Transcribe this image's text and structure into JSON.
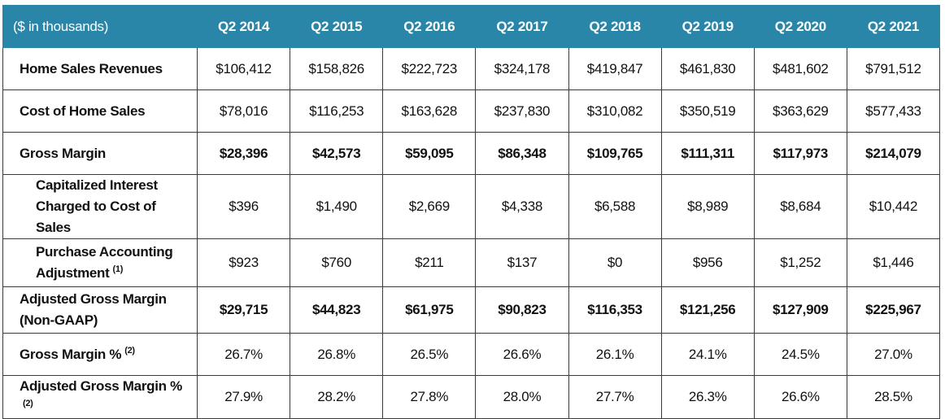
{
  "table": {
    "header_label": "($ in thousands)",
    "columns": [
      "Q2 2014",
      "Q2 2015",
      "Q2 2016",
      "Q2 2017",
      "Q2 2018",
      "Q2 2019",
      "Q2 2020",
      "Q2 2021"
    ],
    "rows": [
      {
        "label": "Home Sales Revenues",
        "values": [
          "$106,412",
          "$158,826",
          "$222,723",
          "$324,178",
          "$419,847",
          "$461,830",
          "$481,602",
          "$791,512"
        ]
      },
      {
        "label": "Cost of Home Sales",
        "values": [
          "$78,016",
          "$116,253",
          "$163,628",
          "$237,830",
          "$310,082",
          "$350,519",
          "$363,629",
          "$577,433"
        ]
      },
      {
        "label": "Gross Margin",
        "values": [
          "$28,396",
          "$42,573",
          "$59,095",
          "$86,348",
          "$109,765",
          "$111,311",
          "$117,973",
          "$214,079"
        ]
      },
      {
        "label_line1": "Capitalized Interest",
        "label_line2": "Charged to Cost of Sales",
        "values": [
          "$396",
          "$1,490",
          "$2,669",
          "$4,338",
          "$6,588",
          "$8,989",
          "$8,684",
          "$10,442"
        ]
      },
      {
        "label_line1": "Purchase Accounting",
        "label_line2": "Adjustment",
        "footnote": "(1)",
        "values": [
          "$923",
          "$760",
          "$211",
          "$137",
          "$0",
          "$956",
          "$1,252",
          "$1,446"
        ]
      },
      {
        "label_line1": "Adjusted Gross Margin",
        "label_line2": "(Non-GAAP)",
        "values": [
          "$29,715",
          "$44,823",
          "$61,975",
          "$90,823",
          "$116,353",
          "$121,256",
          "$127,909",
          "$225,967"
        ]
      },
      {
        "label": "Gross Margin %",
        "footnote": "(2)",
        "values": [
          "26.7%",
          "26.8%",
          "26.5%",
          "26.6%",
          "26.1%",
          "24.1%",
          "24.5%",
          "27.0%"
        ]
      },
      {
        "label": "Adjusted Gross Margin %",
        "footnote": "(2)",
        "values": [
          "27.9%",
          "28.2%",
          "27.8%",
          "28.0%",
          "27.7%",
          "26.3%",
          "26.6%",
          "28.5%"
        ]
      }
    ]
  },
  "colors": {
    "header_background": "#2a86a8",
    "header_text": "#ffffff",
    "border": "#3a3a3a"
  }
}
